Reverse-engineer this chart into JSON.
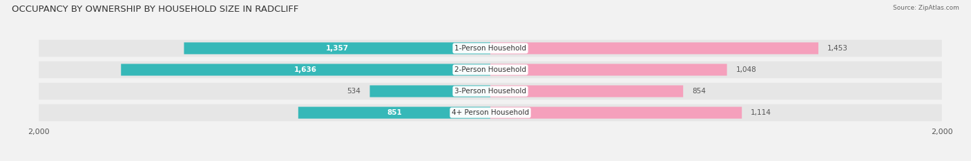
{
  "title": "OCCUPANCY BY OWNERSHIP BY HOUSEHOLD SIZE IN RADCLIFF",
  "source": "Source: ZipAtlas.com",
  "categories": [
    "1-Person Household",
    "2-Person Household",
    "3-Person Household",
    "4+ Person Household"
  ],
  "owner_values": [
    1357,
    1636,
    534,
    851
  ],
  "renter_values": [
    1453,
    1048,
    854,
    1114
  ],
  "max_val": 2000,
  "owner_color": "#36b8b8",
  "renter_color": "#f5a0bc",
  "bg_color": "#f2f2f2",
  "row_bg_color": "#e6e6e6",
  "title_fontsize": 9.5,
  "label_fontsize": 7.5,
  "tick_fontsize": 8,
  "axis_label": "2,000",
  "owner_threshold": 600,
  "renter_threshold": 600
}
